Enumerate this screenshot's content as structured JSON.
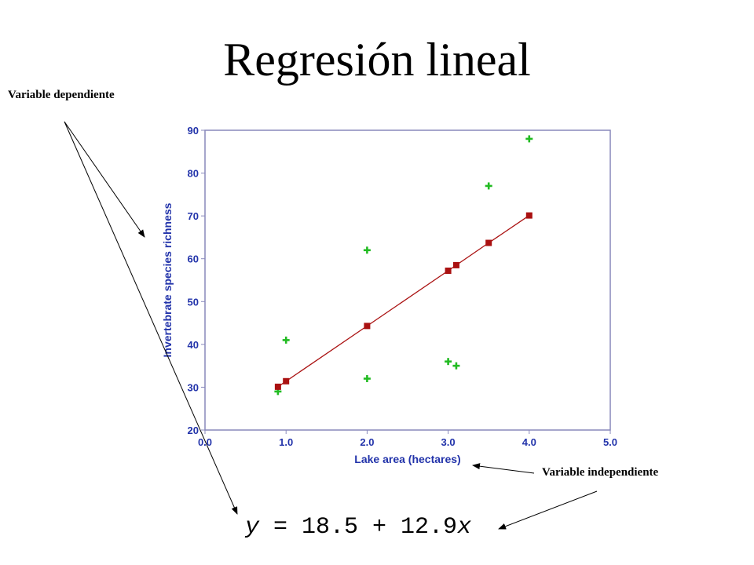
{
  "slide": {
    "title": "Regresión lineal",
    "callout_dependent": "Variable dependiente",
    "callout_independent": "Variable independiente",
    "equation": {
      "y_symbol": "y",
      "middle": " = 18.5 + 12.9",
      "x_symbol": "x"
    }
  },
  "colors": {
    "axis_labels": "#2233aa",
    "frame": "#8888bb",
    "observed": "#22bb22",
    "fitted": "#aa1111",
    "regression_line": "#aa1111"
  },
  "chart_data": {
    "type": "scatter",
    "xlabel": "Lake area (hectares)",
    "ylabel": "Invertebrate species richness",
    "xlim": [
      0.0,
      5.0
    ],
    "ylim": [
      20,
      90
    ],
    "x_ticks": [
      "0.0",
      "1.0",
      "2.0",
      "3.0",
      "4.0",
      "5.0"
    ],
    "y_ticks": [
      "20",
      "30",
      "40",
      "50",
      "60",
      "70",
      "80",
      "90"
    ],
    "grid": false,
    "series": [
      {
        "marker": "plus",
        "points": [
          {
            "x": 0.9,
            "y": 29
          },
          {
            "x": 1.0,
            "y": 41
          },
          {
            "x": 2.0,
            "y": 62
          },
          {
            "x": 2.0,
            "y": 32
          },
          {
            "x": 3.0,
            "y": 36
          },
          {
            "x": 3.1,
            "y": 35
          },
          {
            "x": 3.5,
            "y": 77
          },
          {
            "x": 4.0,
            "y": 88
          }
        ]
      },
      {
        "marker": "square",
        "line": true,
        "points": [
          {
            "x": 0.9,
            "y": 30.1
          },
          {
            "x": 1.0,
            "y": 31.4
          },
          {
            "x": 2.0,
            "y": 44.3
          },
          {
            "x": 3.0,
            "y": 57.2
          },
          {
            "x": 3.1,
            "y": 58.5
          },
          {
            "x": 3.5,
            "y": 63.7
          },
          {
            "x": 4.0,
            "y": 70.1
          }
        ]
      }
    ]
  }
}
